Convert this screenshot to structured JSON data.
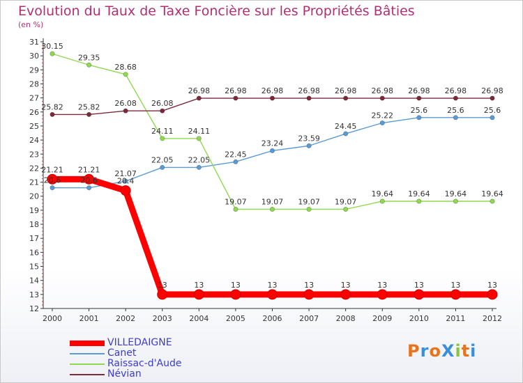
{
  "title": "Evolution du Taux de Taxe Foncière sur les Propriétés Bâties",
  "unit_label": "(en %)",
  "logo": {
    "text": "ProXiti",
    "colors": [
      "#e8731a",
      "#3a8fd8",
      "#e8731a",
      "#3a8fd8",
      "#8bc53f",
      "#e8731a",
      "#3a8fd8"
    ]
  },
  "chart_data": {
    "type": "line",
    "x": [
      "2000",
      "2001",
      "2002",
      "2003",
      "2004",
      "2005",
      "2006",
      "2007",
      "2008",
      "2009",
      "2010",
      "2011",
      "2012"
    ],
    "ylim": [
      12,
      31
    ],
    "yticks": [
      12,
      13,
      14,
      15,
      16,
      17,
      18,
      19,
      20,
      21,
      22,
      23,
      24,
      25,
      26,
      27,
      28,
      29,
      30,
      31
    ],
    "grid": false,
    "legend_position": "bottom-left",
    "series": [
      {
        "name": "VILLEDAIGNE",
        "color": "#ff0000",
        "values": [
          21.21,
          21.21,
          20.4,
          13,
          13,
          13,
          13,
          13,
          13,
          13,
          13,
          13,
          13
        ],
        "labels": [
          "21.21",
          "21.21",
          "20.4",
          "13",
          "13",
          "13",
          "13",
          "13",
          "13",
          "13",
          "13",
          "13",
          "13"
        ]
      },
      {
        "name": "Canet",
        "color": "#5a9bd4",
        "values": [
          20.6,
          20.6,
          21.07,
          22.05,
          22.05,
          22.45,
          23.24,
          23.59,
          24.45,
          25.22,
          25.6,
          25.6,
          25.6
        ],
        "labels": [
          "20.6",
          "20.6",
          "21.07",
          "22.05",
          "22.05",
          "22.45",
          "23.24",
          "23.59",
          "24.45",
          "25.22",
          "25.6",
          "25.6",
          "25.6"
        ]
      },
      {
        "name": "Raissac-d'Aude",
        "color": "#8fd94f",
        "values": [
          30.15,
          29.35,
          28.68,
          24.11,
          24.11,
          19.07,
          19.07,
          19.07,
          19.07,
          19.64,
          19.64,
          19.64,
          19.64
        ],
        "labels": [
          "30.15",
          "29.35",
          "28.68",
          "24.11",
          "24.11",
          "19.07",
          "19.07",
          "19.07",
          "19.07",
          "19.64",
          "19.64",
          "19.64",
          "19.64"
        ]
      },
      {
        "name": "Névian",
        "color": "#7b2a3a",
        "values": [
          25.82,
          25.82,
          26.08,
          26.08,
          26.98,
          26.98,
          26.98,
          26.98,
          26.98,
          26.98,
          26.98,
          26.98,
          26.98
        ],
        "labels": [
          "25.82",
          "25.82",
          "26.08",
          "26.08",
          "26.98",
          "26.98",
          "26.98",
          "26.98",
          "26.98",
          "26.98",
          "26.98",
          "26.98",
          "26.98"
        ]
      }
    ]
  }
}
